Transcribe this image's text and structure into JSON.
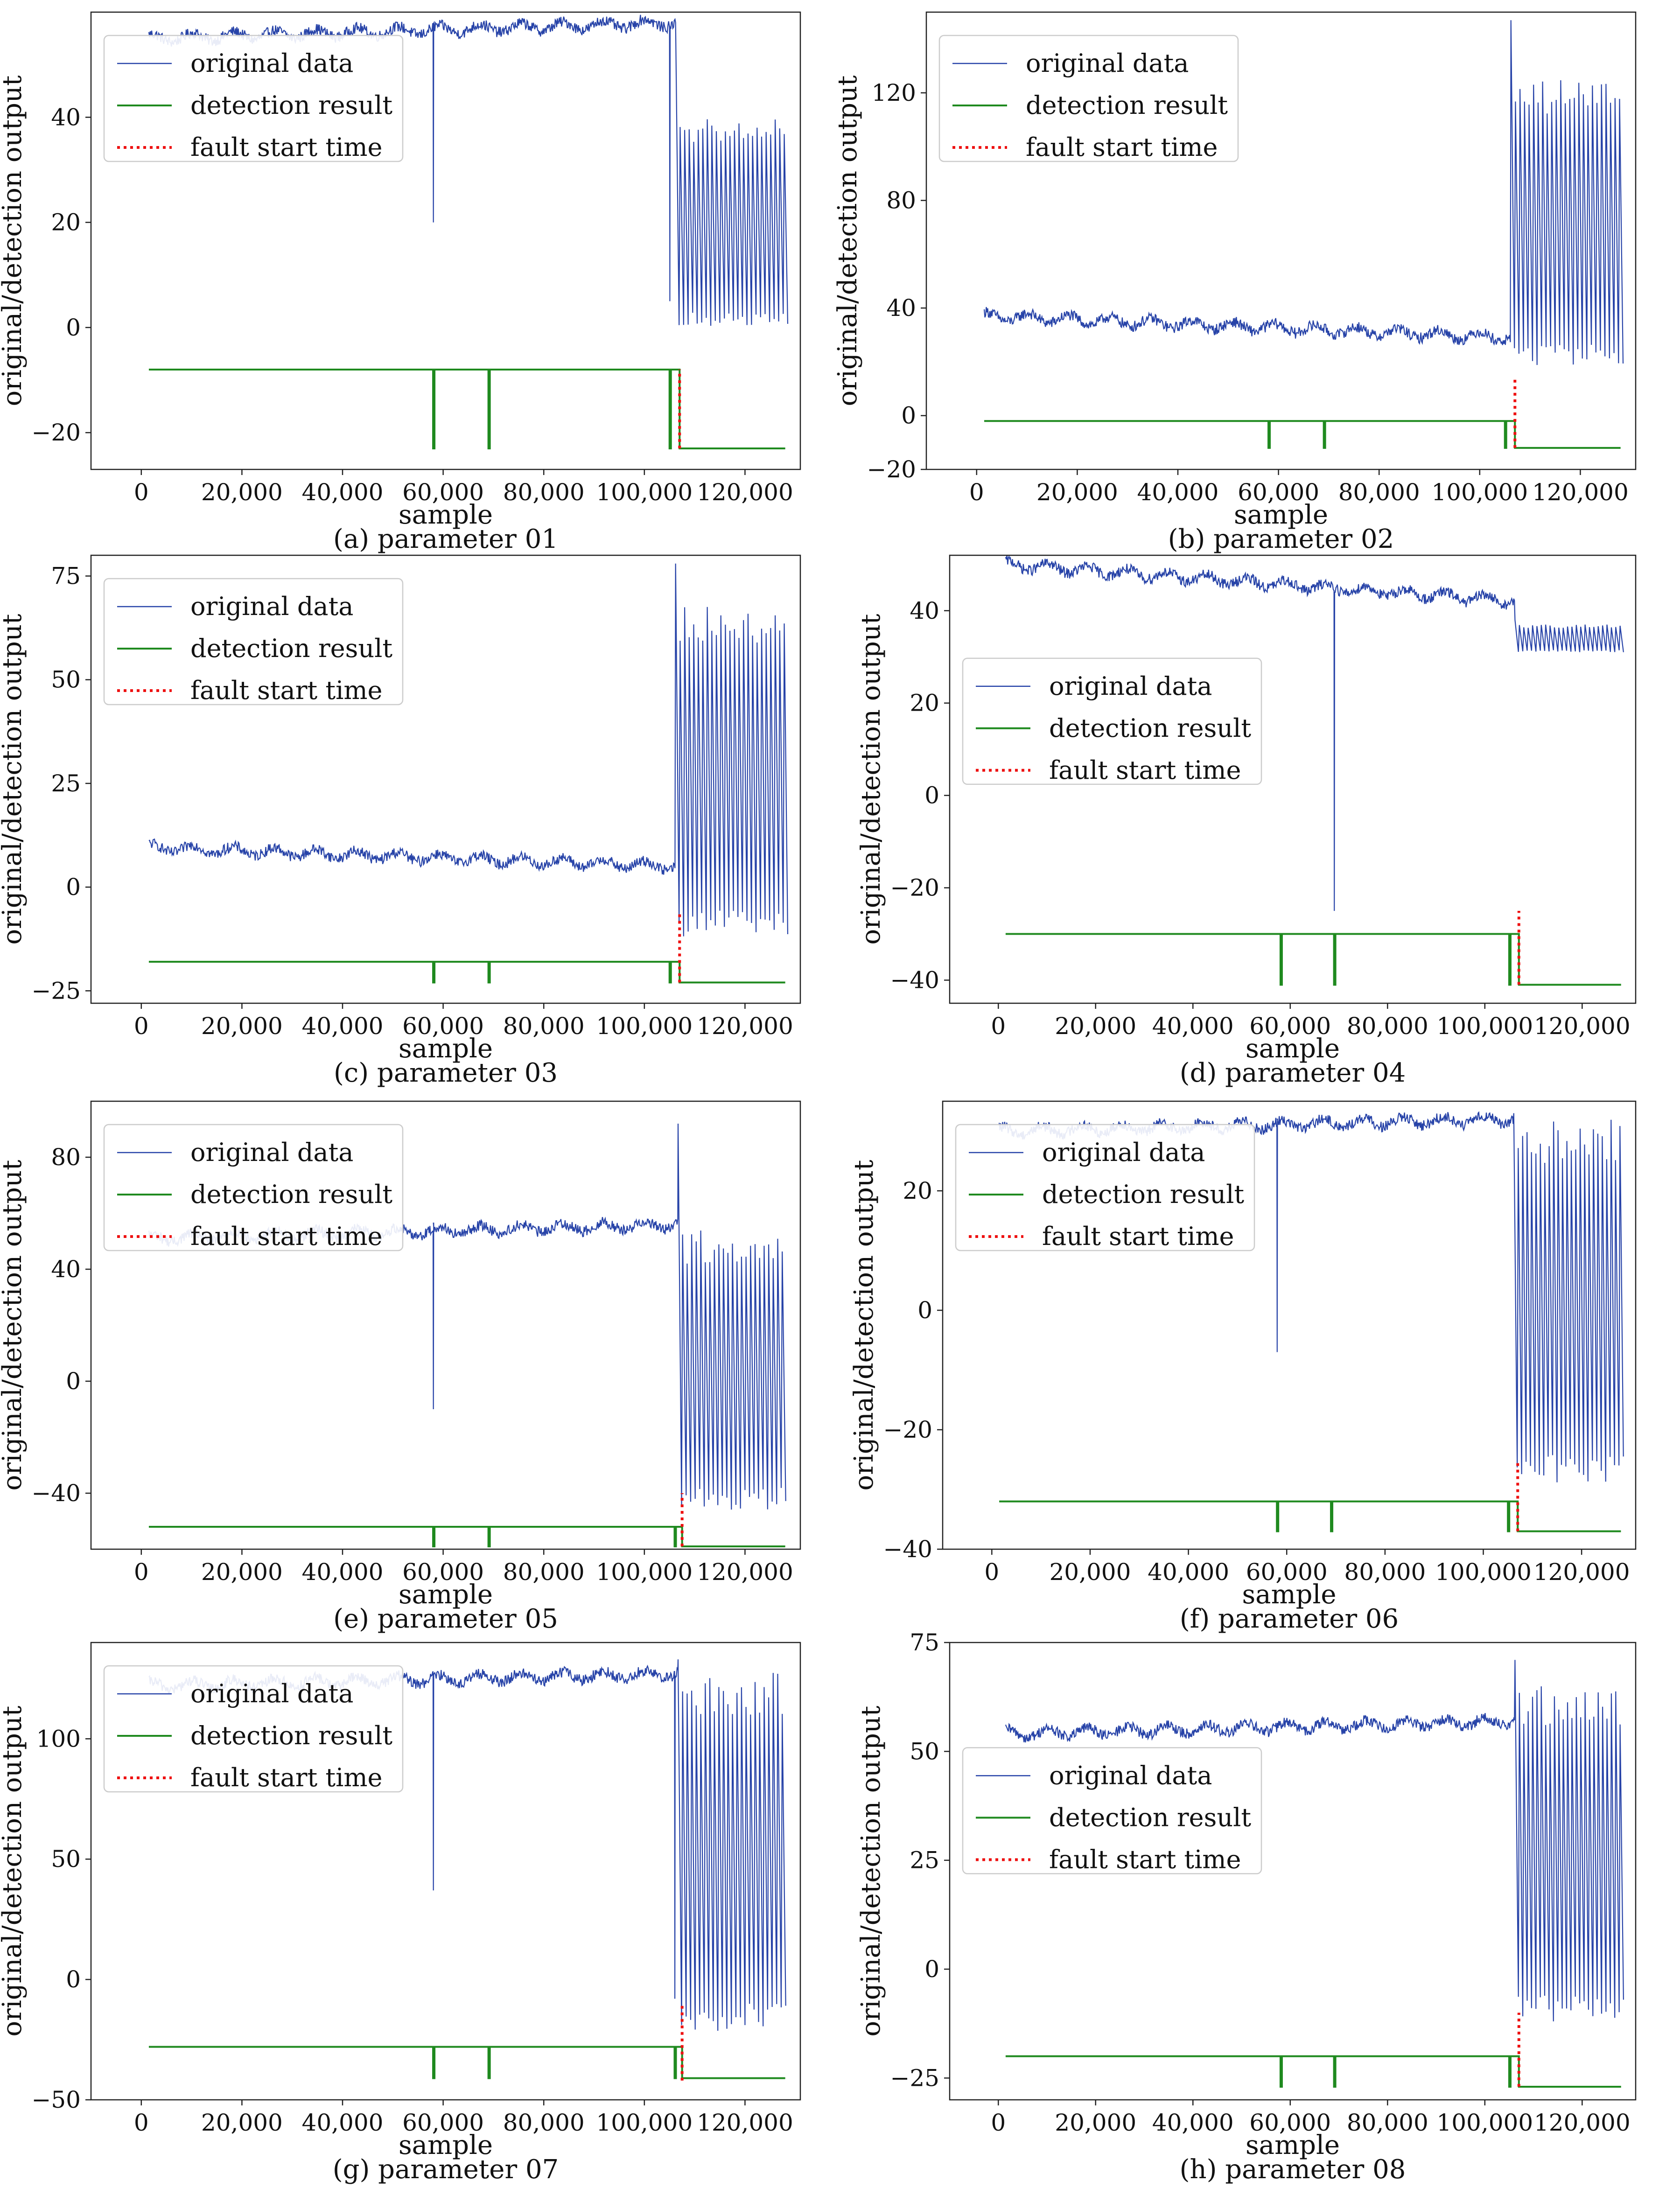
{
  "figure": {
    "colors": {
      "original": "#2743a8",
      "detection": "#1f8a1f",
      "fault": "#ee1111",
      "axes": "#222222",
      "legend_border": "#cccccc"
    },
    "legend_labels": [
      "original data",
      "detection result",
      "fault start time"
    ]
  },
  "chart_data": [
    {
      "type": "line",
      "caption": "(a) parameter 01",
      "xlabel": "sample",
      "ylabel": "original/detection output",
      "xlim": [
        -10000,
        131000
      ],
      "ylim": [
        -27,
        60
      ],
      "xticks": [
        0,
        20000,
        40000,
        60000,
        80000,
        100000,
        120000
      ],
      "xtick_labels": [
        "0",
        "20,000",
        "40,000",
        "60,000",
        "80,000",
        "100,000",
        "120,000"
      ],
      "yticks": [
        -20,
        0,
        20,
        40
      ],
      "ytick_labels": [
        "−20",
        "0",
        "20",
        "40"
      ],
      "legend_position": "upper-left",
      "fault_start": 107000,
      "fault_line_range": [
        -23,
        -8
      ],
      "detection": {
        "normal": -8,
        "fault": -23,
        "spike_samples": [
          58000,
          69000,
          105000
        ]
      },
      "original": {
        "x_start": 1500,
        "start": 55,
        "pre_end": 58,
        "dips": [
          {
            "x": 58000,
            "y": 20
          },
          {
            "x": 105000,
            "y": 5
          }
        ],
        "post_min": 0,
        "post_max": 40,
        "post_peak": 58,
        "x_end": 128000
      }
    },
    {
      "type": "line",
      "caption": "(b) parameter 02",
      "xlabel": "sample",
      "ylabel": "original/detection output",
      "xlim": [
        -10000,
        131000
      ],
      "ylim": [
        -20,
        150
      ],
      "xticks": [
        0,
        20000,
        40000,
        60000,
        80000,
        100000,
        120000
      ],
      "xtick_labels": [
        "0",
        "20,000",
        "40,000",
        "60,000",
        "80,000",
        "100,000",
        "120,000"
      ],
      "yticks": [
        -20,
        0,
        40,
        80,
        120
      ],
      "ytick_labels": [
        "−20",
        "0",
        "40",
        "80",
        "120"
      ],
      "legend_position": "upper-left",
      "fault_start": 107000,
      "fault_line_range": [
        -12,
        14
      ],
      "detection": {
        "normal": -2,
        "fault": -12,
        "spike_samples": [
          58000,
          69000,
          105000
        ]
      },
      "original": {
        "x_start": 1500,
        "start": 37,
        "pre_end": 29,
        "dips": [],
        "post_min": 18,
        "post_max": 125,
        "post_peak": 147,
        "x_end": 128000
      }
    },
    {
      "type": "line",
      "caption": "(c) parameter 03",
      "xlabel": "sample",
      "ylabel": "original/detection output",
      "xlim": [
        -10000,
        131000
      ],
      "ylim": [
        -28,
        80
      ],
      "xticks": [
        0,
        20000,
        40000,
        60000,
        80000,
        100000,
        120000
      ],
      "xtick_labels": [
        "0",
        "20,000",
        "40,000",
        "60,000",
        "80,000",
        "100,000",
        "120,000"
      ],
      "yticks": [
        -25,
        0,
        25,
        50,
        75
      ],
      "ytick_labels": [
        "−25",
        "0",
        "25",
        "50",
        "75"
      ],
      "legend_position": "upper-left",
      "fault_start": 107000,
      "fault_line_range": [
        -23,
        -6
      ],
      "detection": {
        "normal": -18,
        "fault": -23,
        "spike_samples": [
          58000,
          69000,
          105000
        ]
      },
      "original": {
        "x_start": 1500,
        "start": 9.5,
        "pre_end": 5,
        "dips": [],
        "post_min": -12,
        "post_max": 68,
        "post_peak": 78,
        "x_end": 128000
      }
    },
    {
      "type": "line",
      "caption": "(d) parameter 04",
      "xlabel": "sample",
      "ylabel": "original/detection output",
      "xlim": [
        -10000,
        131000
      ],
      "ylim": [
        -45,
        52
      ],
      "xticks": [
        0,
        20000,
        40000,
        60000,
        80000,
        100000,
        120000
      ],
      "xtick_labels": [
        "0",
        "20,000",
        "40,000",
        "60,000",
        "80,000",
        "100,000",
        "120,000"
      ],
      "yticks": [
        -40,
        -20,
        0,
        20,
        40
      ],
      "ytick_labels": [
        "−40",
        "−20",
        "0",
        "20",
        "40"
      ],
      "legend_position": "center-left",
      "fault_start": 107000,
      "fault_line_range": [
        -41,
        -25
      ],
      "detection": {
        "normal": -30,
        "fault": -41,
        "spike_samples": [
          58000,
          69000,
          105000
        ]
      },
      "original": {
        "x_start": 1500,
        "start": 50,
        "pre_end": 42,
        "dips": [
          {
            "x": 69000,
            "y": -25
          }
        ],
        "post_min": 31,
        "post_max": 37,
        "post_peak": 38,
        "x_end": 128000
      }
    },
    {
      "type": "line",
      "caption": "(e) parameter 05",
      "xlabel": "sample",
      "ylabel": "original/detection output",
      "xlim": [
        -10000,
        131000
      ],
      "ylim": [
        -60,
        100
      ],
      "xticks": [
        0,
        20000,
        40000,
        60000,
        80000,
        100000,
        120000
      ],
      "xtick_labels": [
        "0",
        "20,000",
        "40,000",
        "60,000",
        "80,000",
        "100,000",
        "120,000"
      ],
      "yticks": [
        -40,
        0,
        40,
        80
      ],
      "ytick_labels": [
        "−40",
        "0",
        "40",
        "80"
      ],
      "legend_position": "upper-left",
      "fault_start": 107500,
      "fault_line_range": [
        -59,
        -40
      ],
      "detection": {
        "normal": -52,
        "fault": -59,
        "spike_samples": [
          58000,
          69000,
          106000
        ]
      },
      "original": {
        "x_start": 1500,
        "start": 51,
        "pre_end": 56,
        "dips": [
          {
            "x": 58000,
            "y": -10
          }
        ],
        "post_min": -46,
        "post_max": 54,
        "post_peak": 92,
        "x_end": 128000
      }
    },
    {
      "type": "line",
      "caption": "(f) parameter 06",
      "xlabel": "sample",
      "ylabel": "original/detection output",
      "xlim": [
        -10000,
        131000
      ],
      "ylim": [
        -40,
        35
      ],
      "xticks": [
        0,
        20000,
        40000,
        60000,
        80000,
        100000,
        120000
      ],
      "xtick_labels": [
        "0",
        "20,000",
        "40,000",
        "60,000",
        "80,000",
        "100,000",
        "120,000"
      ],
      "yticks": [
        -40,
        -20,
        0,
        20
      ],
      "ytick_labels": [
        "−40",
        "−20",
        "0",
        "20"
      ],
      "legend_position": "upper-left",
      "fault_start": 107000,
      "fault_line_range": [
        -37,
        -25
      ],
      "detection": {
        "normal": -32,
        "fault": -37,
        "spike_samples": [
          58000,
          69000,
          105000
        ]
      },
      "original": {
        "x_start": 1500,
        "start": 30,
        "pre_end": 32,
        "dips": [
          {
            "x": 58000,
            "y": -7
          }
        ],
        "post_min": -29,
        "post_max": 32,
        "post_peak": 33,
        "x_end": 128000
      }
    },
    {
      "type": "line",
      "caption": "(g) parameter 07",
      "xlabel": "sample",
      "ylabel": "original/detection output",
      "xlim": [
        -10000,
        131000
      ],
      "ylim": [
        -50,
        140
      ],
      "xticks": [
        0,
        20000,
        40000,
        60000,
        80000,
        100000,
        120000
      ],
      "xtick_labels": [
        "0",
        "20,000",
        "40,000",
        "60,000",
        "80,000",
        "100,000",
        "120,000"
      ],
      "yticks": [
        -50,
        0,
        50,
        100
      ],
      "ytick_labels": [
        "−50",
        "0",
        "50",
        "100"
      ],
      "legend_position": "upper-left",
      "fault_start": 107500,
      "fault_line_range": [
        -42,
        -10
      ],
      "detection": {
        "normal": -28,
        "fault": -41,
        "spike_samples": [
          58000,
          69000,
          106000
        ]
      },
      "original": {
        "x_start": 1500,
        "start": 122,
        "pre_end": 127,
        "dips": [
          {
            "x": 58000,
            "y": 37
          },
          {
            "x": 106000,
            "y": -8
          }
        ],
        "post_min": -22,
        "post_max": 128,
        "post_peak": 133,
        "x_end": 128000
      }
    },
    {
      "type": "line",
      "caption": "(h) parameter 08",
      "xlabel": "sample",
      "ylabel": "original/detection output",
      "xlim": [
        -10000,
        131000
      ],
      "ylim": [
        -30,
        75
      ],
      "xticks": [
        0,
        20000,
        40000,
        60000,
        80000,
        100000,
        120000
      ],
      "xtick_labels": [
        "0",
        "20,000",
        "40,000",
        "60,000",
        "80,000",
        "100,000",
        "120,000"
      ],
      "yticks": [
        -25,
        0,
        25,
        50,
        75
      ],
      "ytick_labels": [
        "−25",
        "0",
        "25",
        "50",
        "75"
      ],
      "legend_position": "center-left",
      "fault_start": 107000,
      "fault_line_range": [
        -27,
        -10
      ],
      "detection": {
        "normal": -20,
        "fault": -27,
        "spike_samples": [
          58000,
          69000,
          105000
        ]
      },
      "original": {
        "x_start": 1500,
        "start": 54,
        "pre_end": 57,
        "dips": [],
        "post_min": -12,
        "post_max": 65,
        "post_peak": 71,
        "x_end": 128000
      }
    }
  ]
}
